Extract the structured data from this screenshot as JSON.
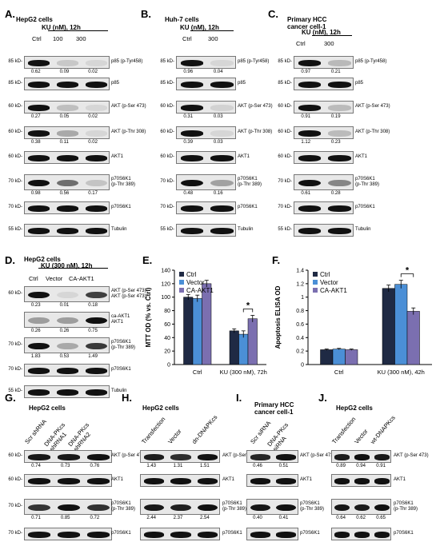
{
  "panels": {
    "A": {
      "letter": "A.",
      "title": "HepG2 cells",
      "treatment": "KU (nM), 12h",
      "cols": [
        "Ctrl",
        "100",
        "300"
      ],
      "rows": [
        {
          "kd": "85 kD-",
          "label": "p85 (p-Tyr458)",
          "quant": [
            "0.62",
            "0.09",
            "0.02"
          ]
        },
        {
          "kd": "85 kD-",
          "label": "p85",
          "quant": []
        },
        {
          "kd": "60 kD-",
          "label": "AKT (p-Ser 473)",
          "quant": [
            "0.27",
            "0.05",
            "0.02"
          ]
        },
        {
          "kd": "60 kD-",
          "label": "AKT (p-Thr 308)",
          "quant": [
            "0.38",
            "0.11",
            "0.02"
          ]
        },
        {
          "kd": "60 kD-",
          "label": "AKT1",
          "quant": []
        },
        {
          "kd": "70 kD-",
          "label": "p70S6K1\n(p-Thr 389)",
          "quant": [
            "0.98",
            "0.56",
            "0.17"
          ]
        },
        {
          "kd": "70 kD-",
          "label": "p70S6K1",
          "quant": []
        },
        {
          "kd": "55 kD-",
          "label": "Tubulin",
          "quant": []
        }
      ]
    },
    "B": {
      "letter": "B.",
      "title": "Huh-7 cells",
      "treatment": "KU (nM), 12h",
      "cols": [
        "Ctrl",
        "300"
      ],
      "rows": [
        {
          "kd": "85 kD-",
          "label": "p85 (p-Tyr458)",
          "quant": [
            "0.96",
            "0.04"
          ]
        },
        {
          "kd": "85 kD-",
          "label": "p85",
          "quant": []
        },
        {
          "kd": "60 kD-",
          "label": "AKT (p-Ser 473)",
          "quant": [
            "0.31",
            "0.03"
          ]
        },
        {
          "kd": "60 kD-",
          "label": "AKT (p-Thr 308)",
          "quant": [
            "0.39",
            "0.03"
          ]
        },
        {
          "kd": "60 kD-",
          "label": "AKT1",
          "quant": []
        },
        {
          "kd": "70 kD-",
          "label": "p70S6K1\n(p-Thr 389)",
          "quant": [
            "0.48",
            "0.16"
          ]
        },
        {
          "kd": "70 kD-",
          "label": "p70S6K1",
          "quant": []
        },
        {
          "kd": "55 kD-",
          "label": "Tubulin",
          "quant": []
        }
      ]
    },
    "C": {
      "letter": "C.",
      "title": "Primary HCC\ncancer cell-1",
      "treatment": "KU (nM), 12h",
      "cols": [
        "Ctrl",
        "300"
      ],
      "rows": [
        {
          "kd": "85 kD-",
          "label": "p85 (p-Tyr458)",
          "quant": [
            "0.97",
            "0.21"
          ]
        },
        {
          "kd": "85 kD-",
          "label": "p85",
          "quant": []
        },
        {
          "kd": "60 kD-",
          "label": "AKT (p-Ser 473)",
          "quant": [
            "0.91",
            "0.19"
          ]
        },
        {
          "kd": "60 kD-",
          "label": "AKT (p-Thr 308)",
          "quant": [
            "1.12",
            "0.23"
          ]
        },
        {
          "kd": "60 kD-",
          "label": "AKT1",
          "quant": []
        },
        {
          "kd": "70 kD-",
          "label": "p70S6K1\n(p-Thr 389)",
          "quant": [
            "0.61",
            "0.28"
          ]
        },
        {
          "kd": "70 kD-",
          "label": "p70S6K1",
          "quant": []
        },
        {
          "kd": "55 kD-",
          "label": "Tubulin",
          "quant": []
        }
      ]
    },
    "D": {
      "letter": "D.",
      "title": "HepG2 cells",
      "treatment": "KU (300 nM), 12h",
      "cols": [
        "Ctrl",
        "Vector",
        "CA-AKT1"
      ],
      "rows": [
        {
          "kd": "60 kD-",
          "label": "AKT (p-Ser 473)\nAKT (p-Ser 473)",
          "quant": [
            "0.23",
            "0.01",
            "0.18"
          ]
        },
        {
          "kd": "",
          "label": "ca-AKT1\nAKT1",
          "quant": [
            "0.26",
            "0.26",
            "0.75"
          ]
        },
        {
          "kd": "70 kD-",
          "label": "p70S6K1\n(p-Thr 389)",
          "quant": [
            "1.83",
            "0.53",
            "1.49"
          ]
        },
        {
          "kd": "70 kD-",
          "label": "p70S6K1",
          "quant": []
        },
        {
          "kd": "55 kD-",
          "label": "Tubulin",
          "quant": []
        }
      ]
    },
    "G": {
      "letter": "G.",
      "title": "HepG2 cells",
      "cols": [
        "Scr shRNA",
        "DNA-PKcs\nshRNA1",
        "DNA-PKcs\nshRNA2"
      ],
      "rows": [
        {
          "kd": "60 kD-",
          "label": "AKT (p-Ser 473)",
          "quant": [
            "0.74",
            "0.73",
            "0.76"
          ]
        },
        {
          "kd": "60 kD-",
          "label": "AKT1",
          "quant": []
        },
        {
          "kd": "70 kD-",
          "label": "p70S6K1\n(p-Thr 389)",
          "quant": [
            "0.71",
            "0.85",
            "0.72"
          ]
        },
        {
          "kd": "70 kD-",
          "label": "p70S6K1",
          "quant": []
        }
      ]
    },
    "H": {
      "letter": "H.",
      "title": "HepG2 cells",
      "cols": [
        "Transfection",
        "Vector",
        "dn-DNAPKcs"
      ],
      "rows": [
        {
          "kd": "",
          "label": "AKT (p-Ser 473)",
          "quant": [
            "1.43",
            "1.31",
            "1.51"
          ]
        },
        {
          "kd": "",
          "label": "AKT1",
          "quant": []
        },
        {
          "kd": "",
          "label": "p70S6K1\n(p-Thr 389)",
          "quant": [
            "2.44",
            "2.37",
            "2.54"
          ]
        },
        {
          "kd": "",
          "label": "p70S6K1",
          "quant": []
        }
      ]
    },
    "I": {
      "letter": "I.",
      "title": "Primary HCC\ncancer cell-1",
      "cols": [
        "Scr siRNA",
        "DNA-PKcs\nsiRNA"
      ],
      "rows": [
        {
          "kd": "",
          "label": "AKT (p-Ser 473)",
          "quant": [
            "0.46",
            "0.51"
          ]
        },
        {
          "kd": "",
          "label": "AKT1",
          "quant": []
        },
        {
          "kd": "",
          "label": "p70S6K1\n(p-Thr 389)",
          "quant": [
            "0.40",
            "0.41"
          ]
        },
        {
          "kd": "",
          "label": "p70S6K1",
          "quant": []
        }
      ]
    },
    "J": {
      "letter": "J.",
      "title": "HepG2 cells",
      "cols": [
        "Transfection",
        "Vector",
        "wt-DNAPKcs"
      ],
      "rows": [
        {
          "kd": "",
          "label": "AKT (p-Ser 473)",
          "quant": [
            "0.89",
            "0.94",
            "0.91"
          ]
        },
        {
          "kd": "",
          "label": "AKT1",
          "quant": []
        },
        {
          "kd": "",
          "label": "p70S6K1\n(p-Thr 389)",
          "quant": [
            "0.64",
            "0.62",
            "0.65"
          ]
        },
        {
          "kd": "",
          "label": "p70S6K1",
          "quant": []
        }
      ]
    }
  },
  "chart_data": [
    {
      "panel": "E",
      "type": "bar",
      "categories": [
        "Ctrl",
        "KU (300 nM), 72h"
      ],
      "series": [
        {
          "name": "Ctrl",
          "values": [
            100,
            50
          ]
        },
        {
          "name": "Vector",
          "values": [
            98,
            45
          ]
        },
        {
          "name": "CA-AKT1",
          "values": [
            120,
            68
          ]
        }
      ],
      "errors": [
        [
          4,
          3
        ],
        [
          5,
          5
        ],
        [
          5,
          5
        ]
      ],
      "ylabel": "MTT OD (% vs. Ctrl)",
      "ylim": [
        0,
        140
      ],
      "yticks": [
        0,
        20,
        40,
        60,
        80,
        100,
        120,
        140
      ],
      "legend": "top-left",
      "significance": "*",
      "colors": [
        "#1f2a44",
        "#4b8fd6",
        "#7b6fb0"
      ]
    },
    {
      "panel": "F",
      "type": "bar",
      "categories": [
        "Ctrl",
        "KU (300 nM), 42h"
      ],
      "series": [
        {
          "name": "Ctrl",
          "values": [
            0.22,
            1.13
          ]
        },
        {
          "name": "Vector",
          "values": [
            0.23,
            1.19
          ]
        },
        {
          "name": "CA-AKT1",
          "values": [
            0.22,
            0.79
          ]
        }
      ],
      "errors": [
        [
          0.01,
          0.05
        ],
        [
          0.01,
          0.06
        ],
        [
          0.01,
          0.05
        ]
      ],
      "ylabel": "Apoptosis ELISA OD",
      "ylim": [
        0,
        1.4
      ],
      "yticks": [
        0,
        0.2,
        0.4,
        0.6,
        0.8,
        1,
        1.2,
        1.4
      ],
      "legend": "top-left",
      "significance": "*",
      "colors": [
        "#1f2a44",
        "#4b8fd6",
        "#7b6fb0"
      ]
    }
  ]
}
